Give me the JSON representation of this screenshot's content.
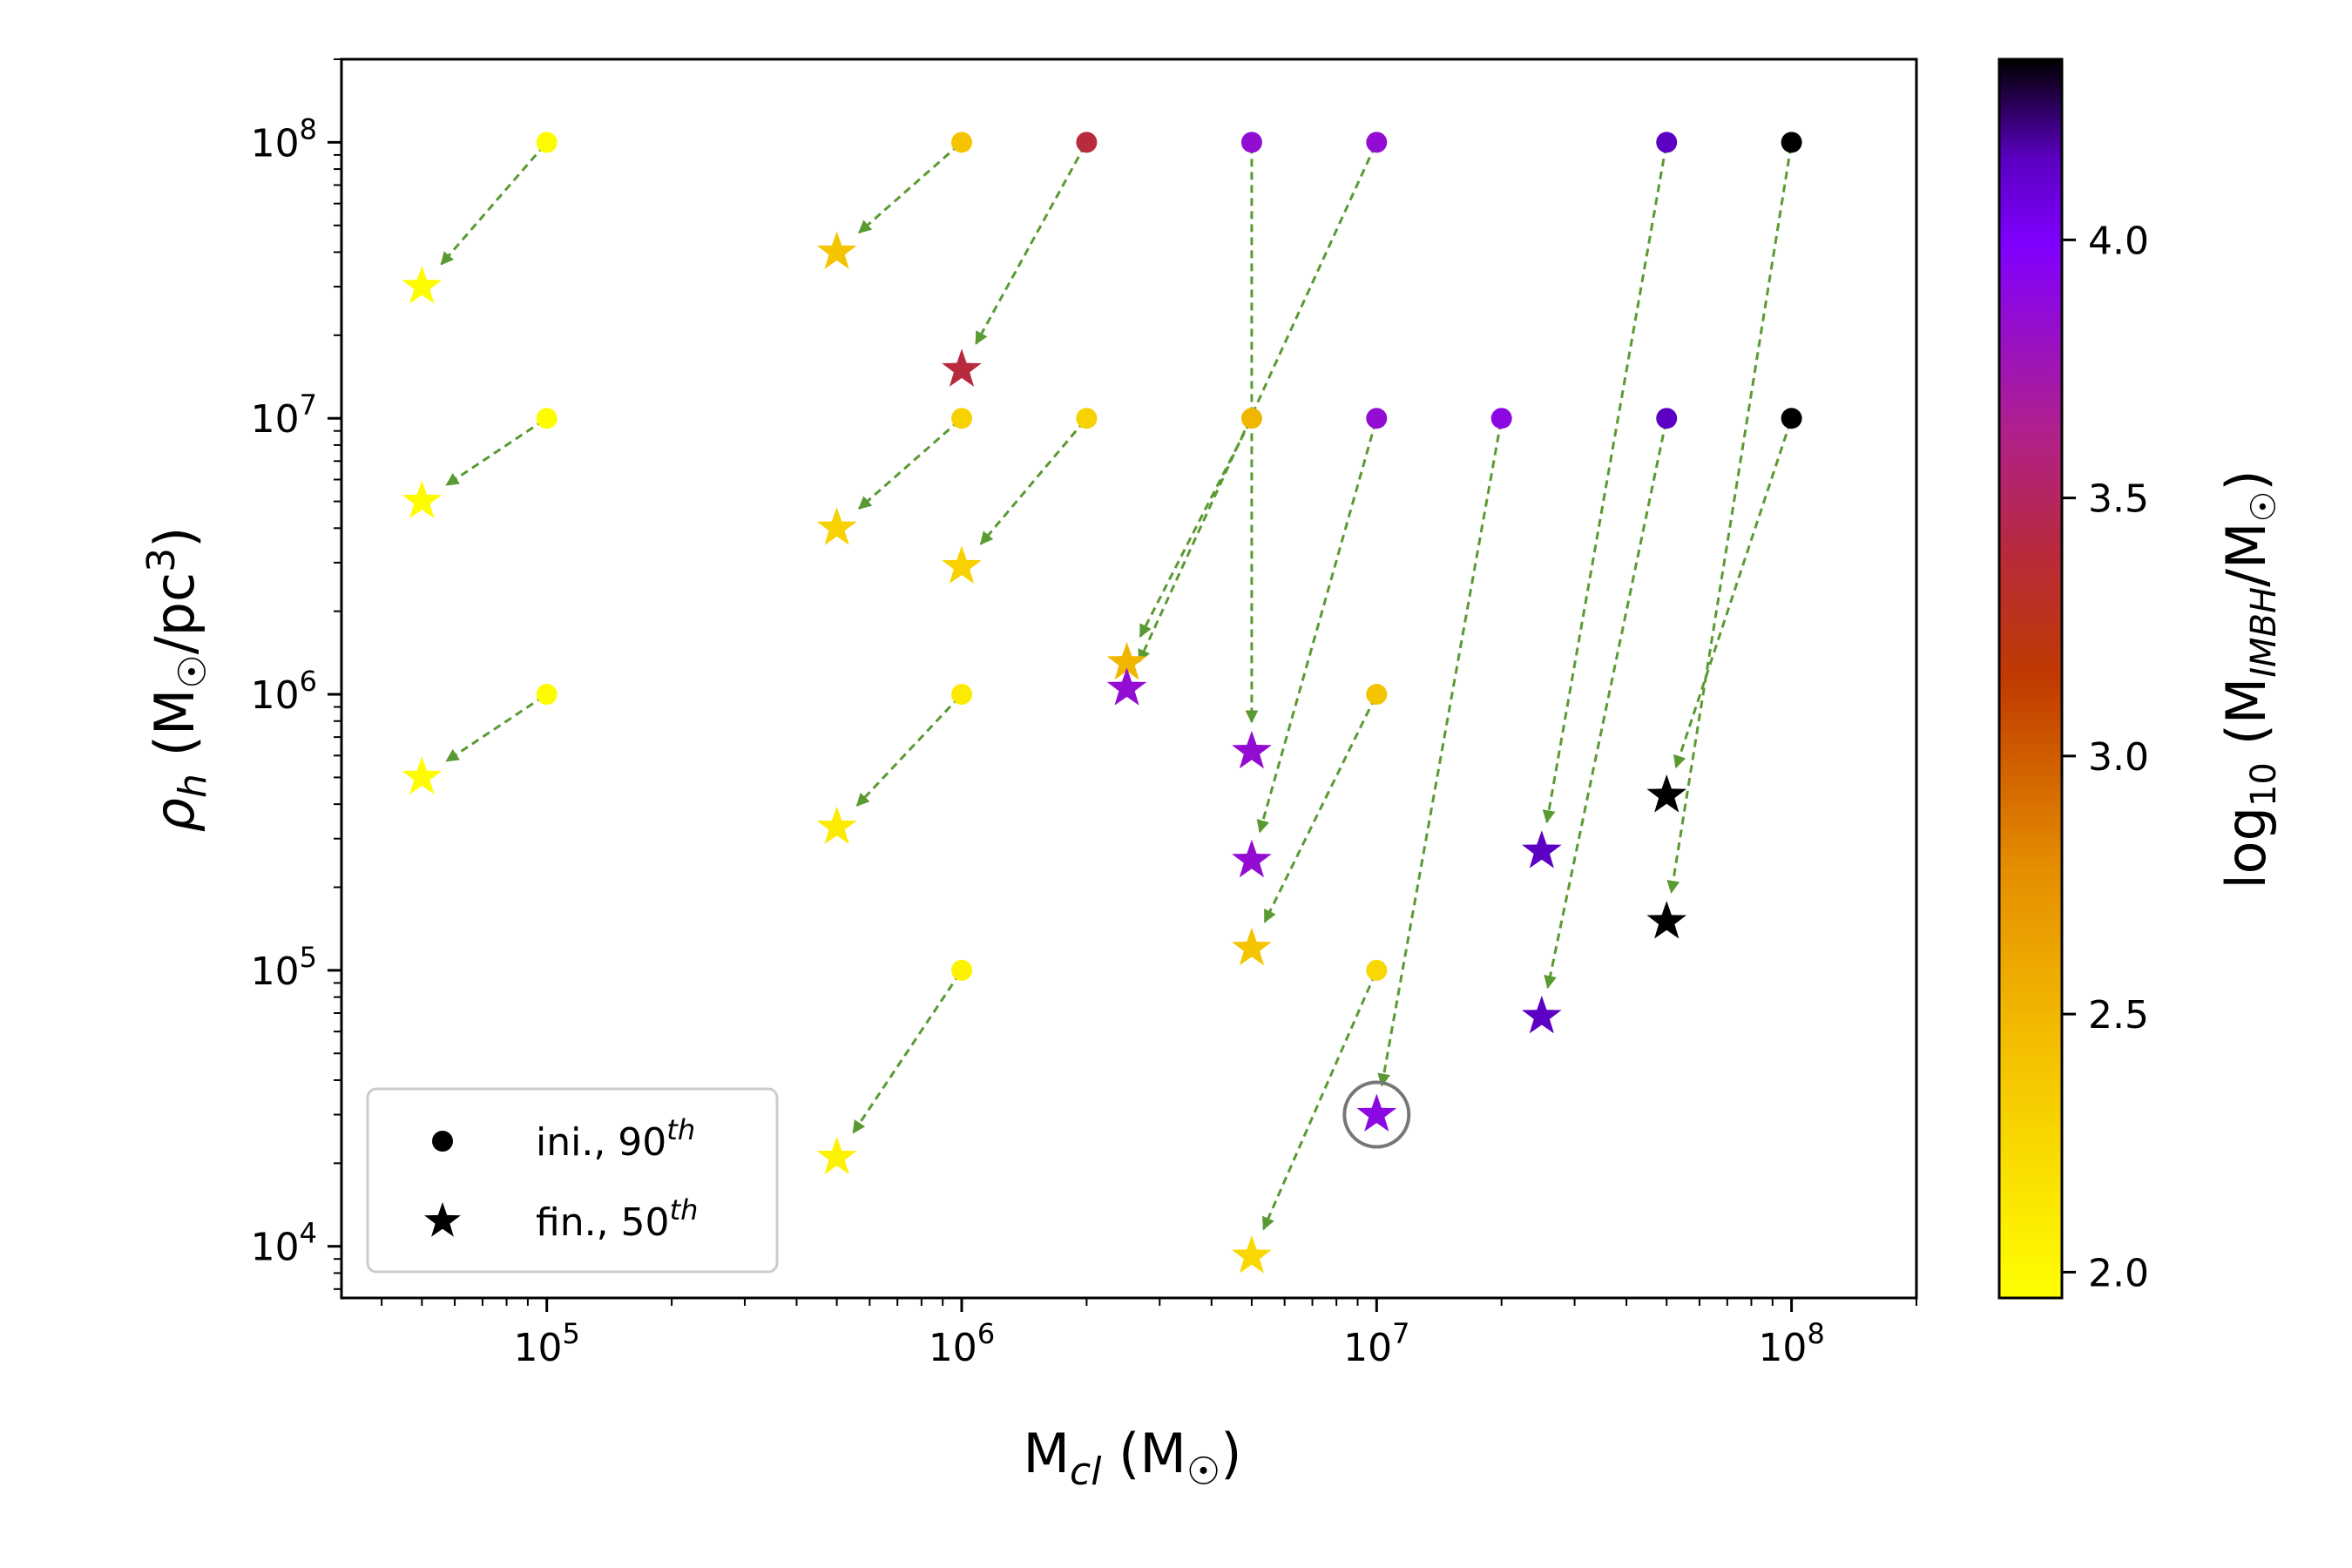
{
  "chart_data": {
    "type": "scatter",
    "x_scale": "log",
    "y_scale": "log",
    "xlim": [
      32000,
      200000000
    ],
    "ylim": [
      6500,
      200000000
    ],
    "x_ticks": [
      {
        "value": 100000,
        "base": "10",
        "exp": "5"
      },
      {
        "value": 1000000,
        "base": "10",
        "exp": "6"
      },
      {
        "value": 10000000,
        "base": "10",
        "exp": "7"
      },
      {
        "value": 100000000,
        "base": "10",
        "exp": "8"
      }
    ],
    "y_ticks": [
      {
        "value": 10000,
        "base": "10",
        "exp": "4"
      },
      {
        "value": 100000,
        "base": "10",
        "exp": "5"
      },
      {
        "value": 1000000,
        "base": "10",
        "exp": "6"
      },
      {
        "value": 10000000,
        "base": "10",
        "exp": "7"
      },
      {
        "value": 100000000,
        "base": "10",
        "exp": "8"
      }
    ],
    "xlabel": {
      "main": "M",
      "sub": "cl",
      "unit_open": " (M",
      "unit_sub": "☉",
      "unit_close": ")"
    },
    "ylabel": {
      "main": "ρ",
      "sub": "h",
      "unit_open": " (M",
      "unit_sub": "☉",
      "unit_mid": "/pc",
      "unit_sup": "3",
      "unit_close": ")"
    },
    "grid": false,
    "legend": {
      "placement": "lower-left",
      "entries": [
        {
          "marker": "circle",
          "label": "ini., 90",
          "sup": "th"
        },
        {
          "marker": "star",
          "label": "fin., 50",
          "sup": "th"
        }
      ]
    },
    "colorbar": {
      "label_prefix": "log",
      "label_base_sub": "10",
      "label_mid": " (M",
      "label_sub": "IMBH",
      "label_mid2": "/M",
      "label_sub2": "☉",
      "label_close": ")",
      "range": [
        1.95,
        4.35
      ],
      "ticks": [
        "2.0",
        "2.5",
        "3.0",
        "3.5",
        "4.0"
      ],
      "colormap": "gnuplot",
      "stops": [
        {
          "v": 0.0,
          "color": "#ffff00"
        },
        {
          "v": 0.2,
          "color": "#f4c000"
        },
        {
          "v": 0.35,
          "color": "#e48c00"
        },
        {
          "v": 0.5,
          "color": "#c03a00"
        },
        {
          "v": 0.6,
          "color": "#b82a3a"
        },
        {
          "v": 0.7,
          "color": "#b0208c"
        },
        {
          "v": 0.85,
          "color": "#8000ff"
        },
        {
          "v": 0.92,
          "color": "#5a00c0"
        },
        {
          "v": 1.0,
          "color": "#000000"
        }
      ]
    },
    "arrow_color": "#5a9a32",
    "highlight": {
      "x": 10000000,
      "y": 30000
    },
    "pairs": [
      {
        "ini": [
          100000,
          100000000
        ],
        "fin": [
          50000,
          30000000
        ],
        "c": 1.97
      },
      {
        "ini": [
          100000,
          10000000
        ],
        "fin": [
          50000,
          5000000
        ],
        "c": 1.97
      },
      {
        "ini": [
          100000,
          1000000
        ],
        "fin": [
          50000,
          500000
        ],
        "c": 1.97
      },
      {
        "ini": [
          1000000,
          100000000
        ],
        "fin": [
          500000,
          40000000
        ],
        "c": 2.4
      },
      {
        "ini": [
          1000000,
          10000000
        ],
        "fin": [
          500000,
          4000000
        ],
        "c": 2.3
      },
      {
        "ini": [
          1000000,
          1000000
        ],
        "fin": [
          500000,
          330000
        ],
        "c": 2.1
      },
      {
        "ini": [
          1000000,
          100000
        ],
        "fin": [
          500000,
          21000
        ],
        "c": 2.05
      },
      {
        "ini": [
          2000000,
          100000000
        ],
        "fin": [
          1000000,
          15000000
        ],
        "c": 3.4
      },
      {
        "ini": [
          2000000,
          10000000
        ],
        "fin": [
          1000000,
          2900000
        ],
        "c": 2.3
      },
      {
        "ini": [
          5000000,
          10000000
        ],
        "fin": [
          2500000,
          1300000
        ],
        "c": 2.5
      },
      {
        "ini": [
          5000000,
          100000000
        ],
        "fin": [
          5000000,
          620000
        ],
        "c": 3.85
      },
      {
        "ini": [
          10000000,
          100000000
        ],
        "fin": [
          2500000,
          1050000
        ],
        "c": 3.85
      },
      {
        "ini": [
          10000000,
          10000000
        ],
        "fin": [
          5000000,
          250000
        ],
        "c": 3.85
      },
      {
        "ini": [
          10000000,
          1000000
        ],
        "fin": [
          5000000,
          120000
        ],
        "c": 2.4
      },
      {
        "ini": [
          10000000,
          100000
        ],
        "fin": [
          5000000,
          9200
        ],
        "c": 2.25
      },
      {
        "ini": [
          20000000,
          10000000
        ],
        "fin": [
          10000000,
          30000
        ],
        "c": 3.9
      },
      {
        "ini": [
          50000000,
          100000000
        ],
        "fin": [
          25000000,
          270000
        ],
        "c": 4.15
      },
      {
        "ini": [
          50000000,
          10000000
        ],
        "fin": [
          25000000,
          68000
        ],
        "c": 4.15
      },
      {
        "ini": [
          100000000,
          100000000
        ],
        "fin": [
          50000000,
          150000
        ],
        "c": 4.35
      },
      {
        "ini": [
          100000000,
          10000000
        ],
        "fin": [
          50000000,
          430000
        ],
        "c": 4.35
      }
    ]
  }
}
